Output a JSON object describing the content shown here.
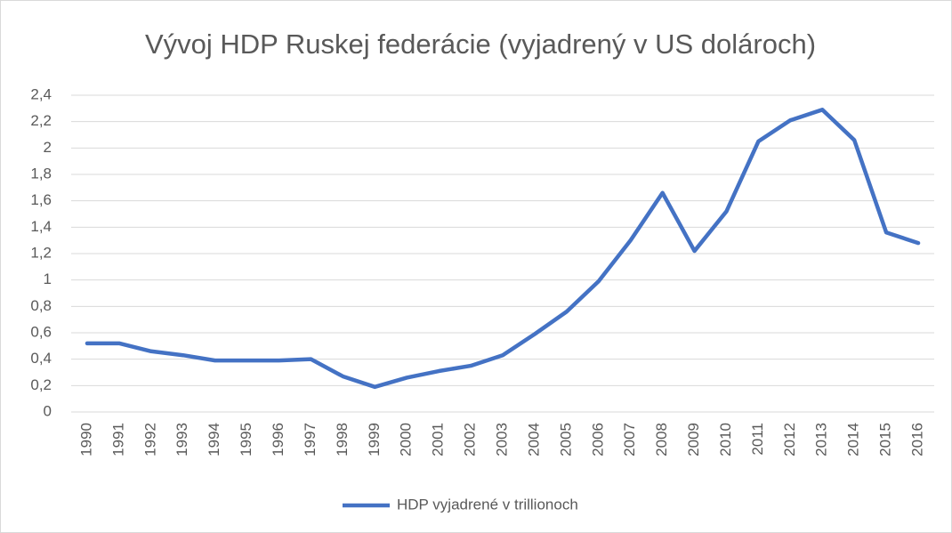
{
  "chart_data": {
    "type": "line",
    "title": "Vývoj HDP Ruskej federácie (vyjadrený v US dolároch)",
    "categories": [
      "1990",
      "1991",
      "1992",
      "1993",
      "1994",
      "1995",
      "1996",
      "1997",
      "1998",
      "1999",
      "2000",
      "2001",
      "2002",
      "2003",
      "2004",
      "2005",
      "2006",
      "2007",
      "2008",
      "2009",
      "2010",
      "2011",
      "2012",
      "2013",
      "2014",
      "2015",
      "2016"
    ],
    "series": [
      {
        "name": "HDP vyjadrené v trillionoch",
        "color": "#4472c4",
        "values": [
          0.52,
          0.52,
          0.46,
          0.43,
          0.39,
          0.39,
          0.39,
          0.4,
          0.27,
          0.19,
          0.26,
          0.31,
          0.35,
          0.43,
          0.59,
          0.76,
          0.99,
          1.3,
          1.66,
          1.22,
          1.52,
          2.05,
          2.21,
          2.29,
          2.06,
          1.36,
          1.28
        ]
      }
    ],
    "ylim": [
      0,
      2.4
    ],
    "yticks": [
      0,
      {
        "value": 0.2,
        "label": "0,2"
      },
      {
        "value": 0.4,
        "label": "0,4"
      },
      {
        "value": 0.6,
        "label": "0,6"
      },
      {
        "value": 0.8,
        "label": "0,8"
      },
      1,
      {
        "value": 1.2,
        "label": "1,2"
      },
      {
        "value": 1.4,
        "label": "1,4"
      },
      {
        "value": 1.6,
        "label": "1,6"
      },
      {
        "value": 1.8,
        "label": "1,8"
      },
      2,
      {
        "value": 2.2,
        "label": "2,2"
      },
      {
        "value": 2.4,
        "label": "2,4"
      }
    ],
    "grid": true,
    "legend": "bottom"
  }
}
